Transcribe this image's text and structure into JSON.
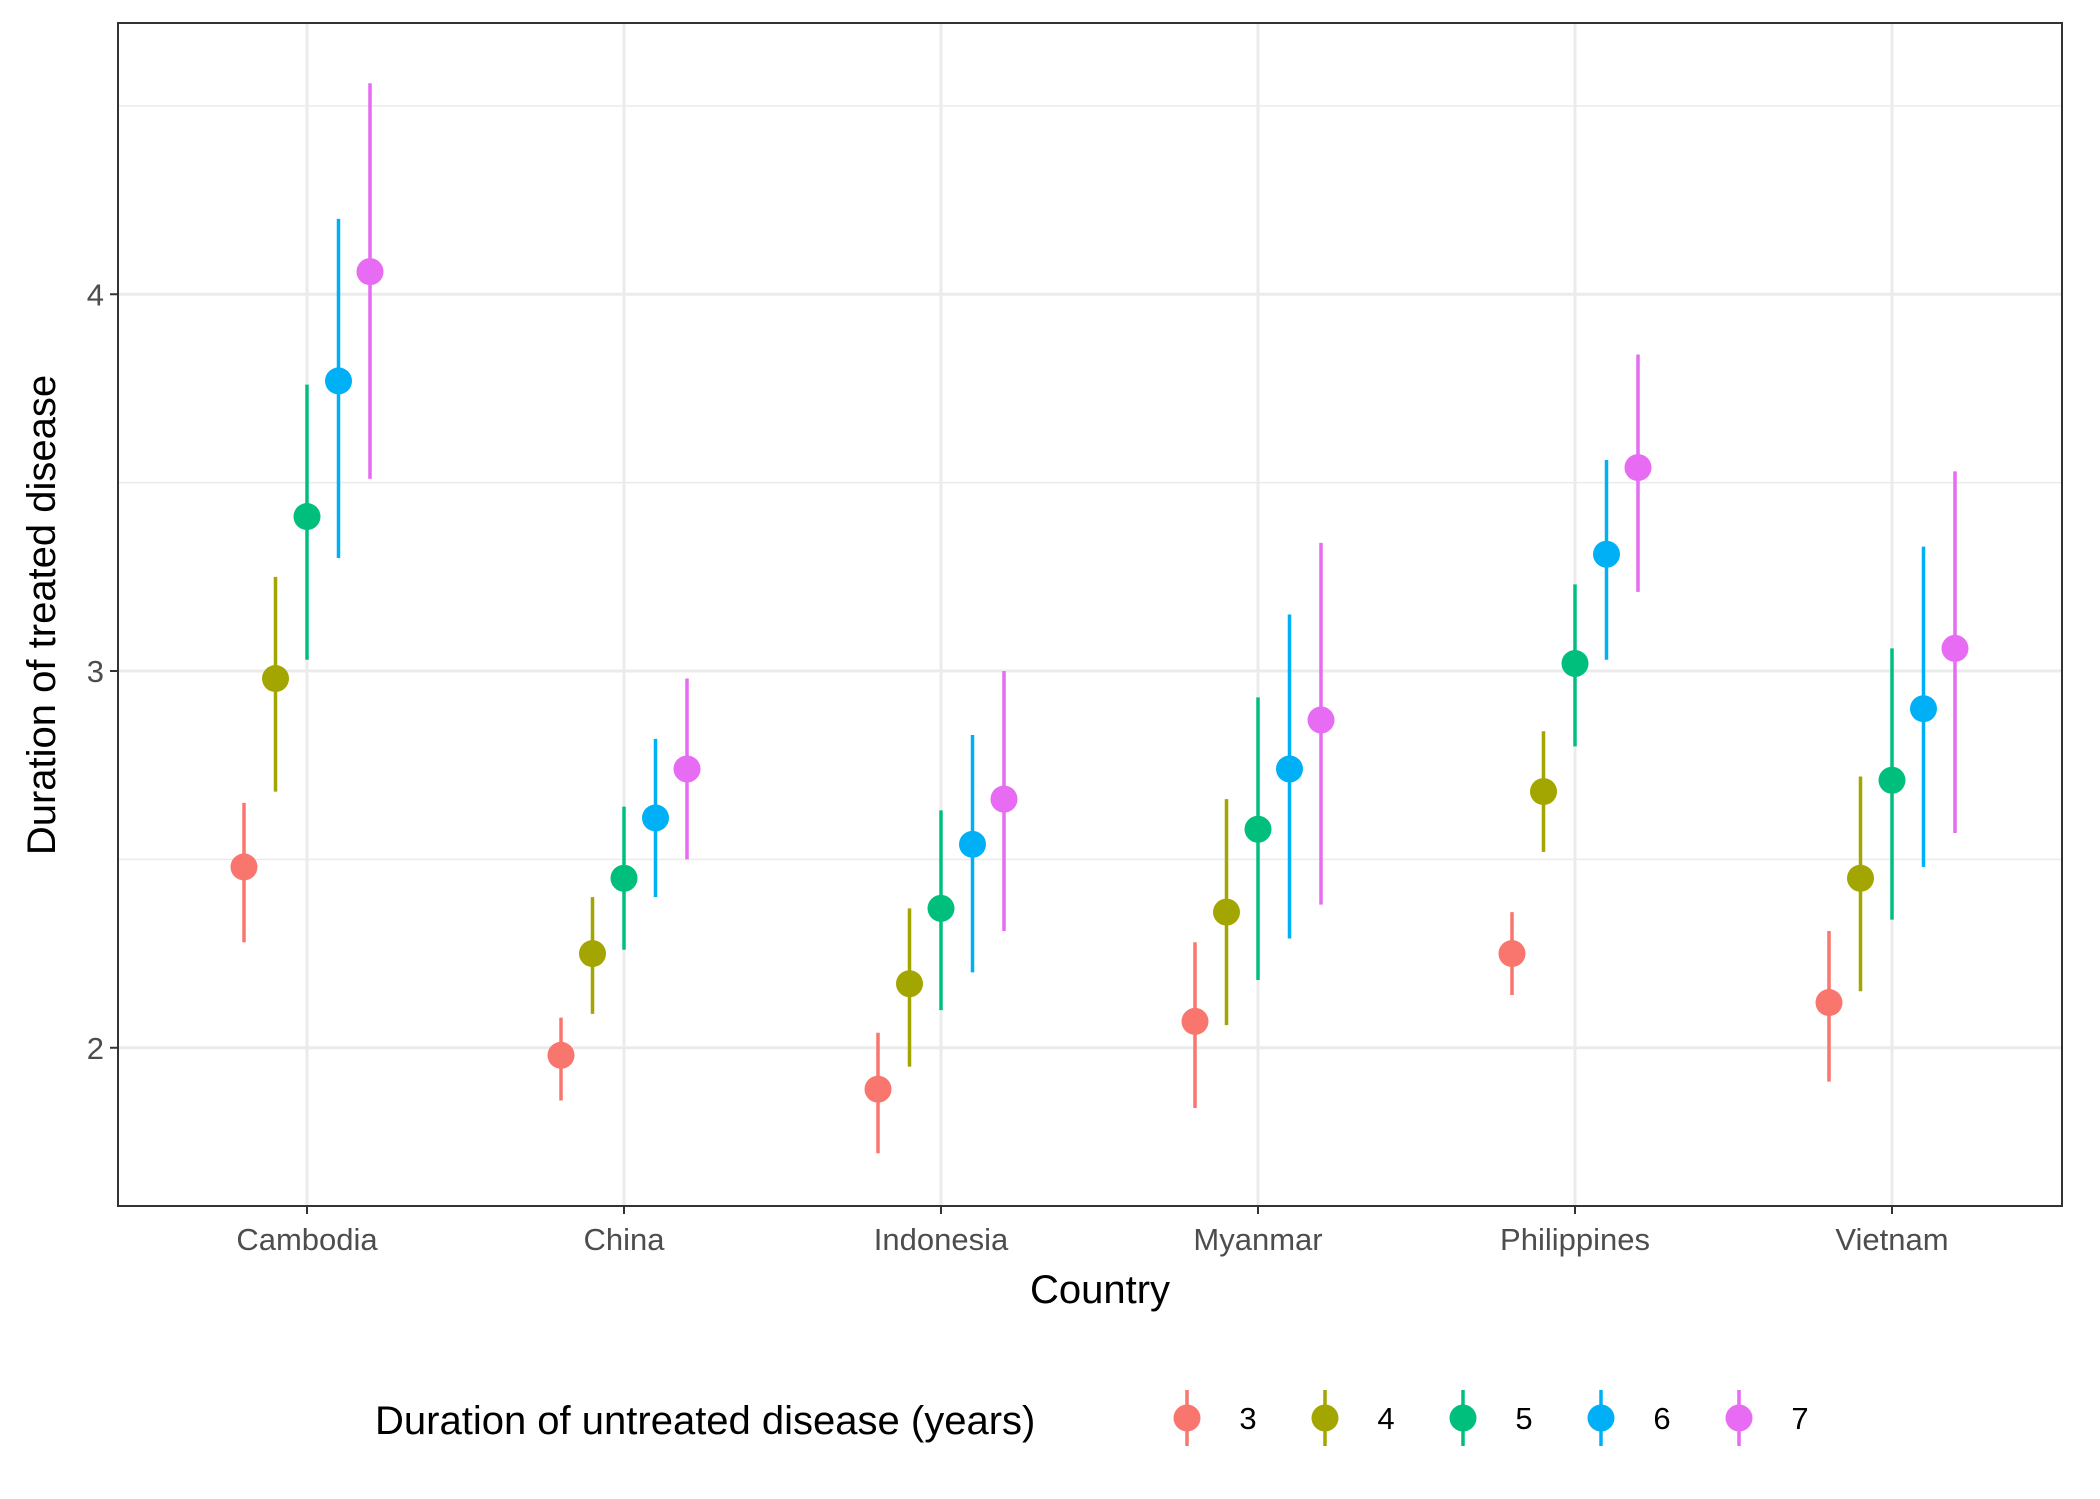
{
  "chart_data": {
    "type": "scatter",
    "subtype": "point-range",
    "xlabel": "Country",
    "ylabel": "Duration of treated disease",
    "categories": [
      "Cambodia",
      "China",
      "Indonesia",
      "Myanmar",
      "Philippines",
      "Vietnam"
    ],
    "yticks": [
      "2",
      "3",
      "4"
    ],
    "ylim": [
      1.58,
      4.72
    ],
    "grid": true,
    "legend": {
      "title": "Duration of untreated disease (years)",
      "position": "bottom"
    },
    "series": [
      {
        "name": "3",
        "color": "#F8766D",
        "values": [
          2.48,
          1.98,
          1.89,
          2.07,
          2.25,
          2.12
        ],
        "lower": [
          2.28,
          1.86,
          1.72,
          1.84,
          2.14,
          1.91
        ],
        "upper": [
          2.65,
          2.08,
          2.04,
          2.28,
          2.36,
          2.31
        ]
      },
      {
        "name": "4",
        "color": "#A3A500",
        "values": [
          2.98,
          2.25,
          2.17,
          2.36,
          2.68,
          2.45
        ],
        "lower": [
          2.68,
          2.09,
          1.95,
          2.06,
          2.52,
          2.15
        ],
        "upper": [
          3.25,
          2.4,
          2.37,
          2.66,
          2.84,
          2.72
        ]
      },
      {
        "name": "5",
        "color": "#00BF7D",
        "values": [
          3.41,
          2.45,
          2.37,
          2.58,
          3.02,
          2.71
        ],
        "lower": [
          3.03,
          2.26,
          2.1,
          2.18,
          2.8,
          2.34
        ],
        "upper": [
          3.76,
          2.64,
          2.63,
          2.93,
          3.23,
          3.06
        ]
      },
      {
        "name": "6",
        "color": "#00B0F6",
        "values": [
          3.77,
          2.61,
          2.54,
          2.74,
          3.31,
          2.9
        ],
        "lower": [
          3.3,
          2.4,
          2.2,
          2.29,
          3.03,
          2.48
        ],
        "upper": [
          4.2,
          2.82,
          2.83,
          3.15,
          3.56,
          3.33
        ]
      },
      {
        "name": "7",
        "color": "#E76BF3",
        "values": [
          4.06,
          2.74,
          2.66,
          2.87,
          3.54,
          3.06
        ],
        "lower": [
          3.51,
          2.5,
          2.31,
          2.38,
          3.21,
          2.57
        ],
        "upper": [
          4.56,
          2.98,
          3.0,
          3.34,
          3.84,
          3.53
        ]
      }
    ]
  }
}
